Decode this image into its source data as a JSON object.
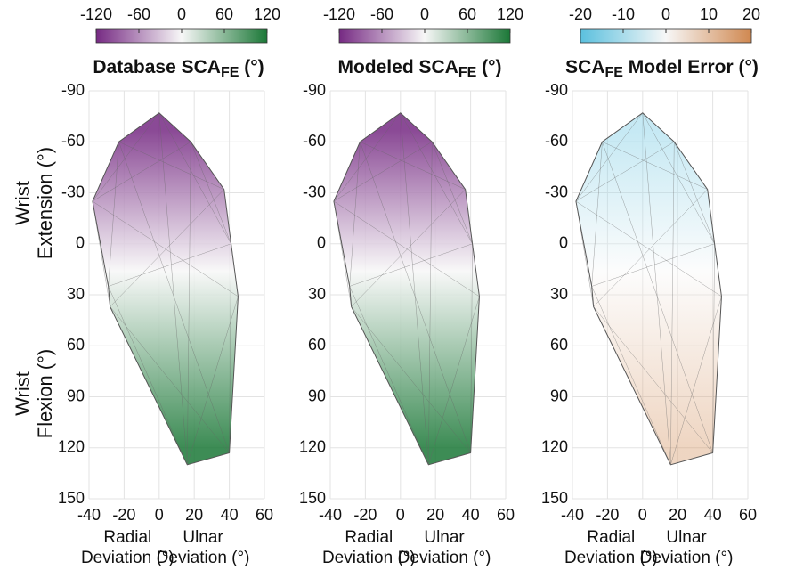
{
  "chart_data": [
    {
      "type": "mesh",
      "title": [
        "Database SCA",
        "FE",
        " (°)"
      ],
      "xlim": [
        -40,
        60
      ],
      "xticks": [
        -40,
        -20,
        0,
        20,
        40,
        60
      ],
      "ylim": [
        -90,
        150
      ],
      "yticks": [
        -90,
        -60,
        -30,
        0,
        30,
        60,
        90,
        120,
        150
      ],
      "grid": true,
      "colorbar": {
        "lim": [
          -120,
          120
        ],
        "ticks": [
          -120,
          -60,
          0,
          60,
          120
        ],
        "colors": [
          "#762a83",
          "#f7f7f7",
          "#1b7837"
        ]
      },
      "outline": {
        "x": [
          0,
          -23,
          -38,
          -29,
          -28,
          16,
          40,
          45,
          41,
          37,
          18
        ],
        "y": [
          -77,
          -60,
          -25,
          25,
          37,
          130,
          123,
          31,
          0,
          -32,
          -60
        ]
      },
      "ylabel_extension": [
        "Wrist",
        "Extension (°)"
      ],
      "ylabel_flexion": [
        "Wrist",
        "Flexion (°)"
      ],
      "xlabel_radial": [
        "Radial",
        "Deviation (°)"
      ],
      "xlabel_ulnar": [
        "Ulnar",
        "Deviation (°)"
      ]
    },
    {
      "type": "mesh",
      "title": [
        "Modeled SCA",
        "FE",
        " (°)"
      ],
      "xlim": [
        -40,
        60
      ],
      "xticks": [
        -40,
        -20,
        0,
        20,
        40,
        60
      ],
      "ylim": [
        -90,
        150
      ],
      "yticks": [
        -90,
        -60,
        -30,
        0,
        30,
        60,
        90,
        120,
        150
      ],
      "grid": true,
      "colorbar": {
        "lim": [
          -120,
          120
        ],
        "ticks": [
          -120,
          -60,
          0,
          60,
          120
        ],
        "colors": [
          "#762a83",
          "#f7f7f7",
          "#1b7837"
        ]
      },
      "outline": {
        "x": [
          0,
          -23,
          -38,
          -29,
          -28,
          16,
          40,
          45,
          41,
          37,
          18
        ],
        "y": [
          -77,
          -60,
          -25,
          25,
          37,
          130,
          123,
          31,
          0,
          -32,
          -60
        ]
      },
      "xlabel_radial": [
        "Radial",
        "Deviation (°)"
      ],
      "xlabel_ulnar": [
        "Ulnar",
        "Deviation (°)"
      ]
    },
    {
      "type": "mesh",
      "title": [
        "SCA",
        "FE",
        " Model Error (°)"
      ],
      "xlim": [
        -40,
        60
      ],
      "xticks": [
        -40,
        -20,
        0,
        20,
        40,
        60
      ],
      "ylim": [
        -90,
        150
      ],
      "yticks": [
        -90,
        -60,
        -30,
        0,
        30,
        60,
        90,
        120,
        150
      ],
      "grid": true,
      "colorbar": {
        "lim": [
          -20,
          20
        ],
        "ticks": [
          -20,
          -10,
          0,
          10,
          20
        ],
        "colors": [
          "#5bc0de",
          "#f7f7f7",
          "#d08850"
        ]
      },
      "outline": {
        "x": [
          0,
          -23,
          -38,
          -29,
          -28,
          16,
          40,
          45,
          41,
          37,
          18
        ],
        "y": [
          -77,
          -60,
          -25,
          25,
          37,
          130,
          123,
          31,
          0,
          -32,
          -60
        ]
      },
      "xlabel_radial": [
        "Radial",
        "Deviation (°)"
      ],
      "xlabel_ulnar": [
        "Ulnar",
        "Deviation (°)"
      ]
    }
  ]
}
